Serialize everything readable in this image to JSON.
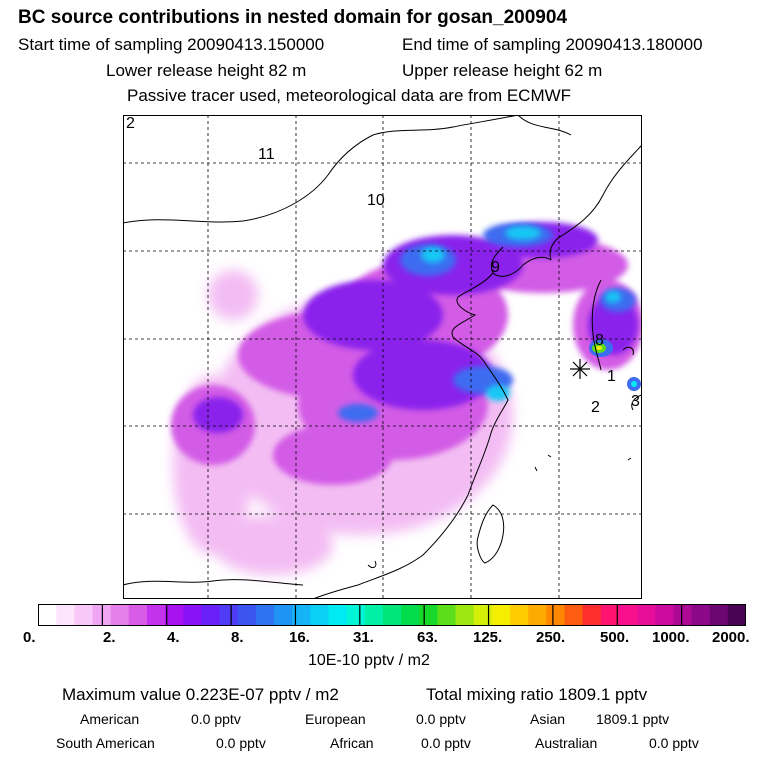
{
  "title": "BC  source contributions in nested domain for gosan_200904",
  "sampling": {
    "start": "Start time of sampling 20090413.150000",
    "end": "End time of sampling 20090413.180000"
  },
  "release": {
    "lower": "Lower release height   82 m",
    "upper": "Upper release height   62 m"
  },
  "note": "Passive tracer used, meteorological data are from ECMWF",
  "map": {
    "region_labels": [
      "11",
      "10",
      "9",
      "8",
      "1",
      "2",
      "3",
      "2"
    ]
  },
  "colorbar": {
    "tick_labels": [
      "0.",
      "2.",
      "4.",
      "8.",
      "16.",
      "31.",
      "63.",
      "125.",
      "250.",
      "500.",
      "1000.",
      "2000."
    ],
    "colors": [
      "#ffffff",
      "#fde6fd",
      "#f8c9f8",
      "#f0a6f2",
      "#e57fea",
      "#d85ce6",
      "#c332ec",
      "#a812f0",
      "#8a12f6",
      "#6a20f8",
      "#4f3cf4",
      "#3c54f0",
      "#2e74f2",
      "#2094f4",
      "#14b4f6",
      "#0ad0f6",
      "#00eaf4",
      "#00f6d6",
      "#00f0a8",
      "#00e67a",
      "#00dc4c",
      "#18d82a",
      "#5cde1a",
      "#9ee812",
      "#d4f008",
      "#f6ee00",
      "#fecc00",
      "#feaa00",
      "#fe8600",
      "#fe5c10",
      "#fe2e2e",
      "#fe1470",
      "#f8108c",
      "#e80e9a",
      "#cc0c9c",
      "#ac0a96",
      "#8c088a",
      "#6c0670",
      "#4a0454"
    ],
    "unit": "10E-10 pptv / m2"
  },
  "stats": {
    "maximum": "Maximum value  0.223E-07 pptv / m2",
    "total": "Total mixing ratio     1809.1 pptv",
    "american_label": "American",
    "american_value": "0.0 pptv",
    "european_label": "European",
    "european_value": "0.0 pptv",
    "asian_label": "Asian",
    "asian_value": "1809.1 pptv",
    "south_american_label": "South American",
    "south_american_value": "0.0 pptv",
    "african_label": "African",
    "african_value": "0.0 pptv",
    "australian_label": "Australian",
    "australian_value": "0.0 pptv"
  }
}
